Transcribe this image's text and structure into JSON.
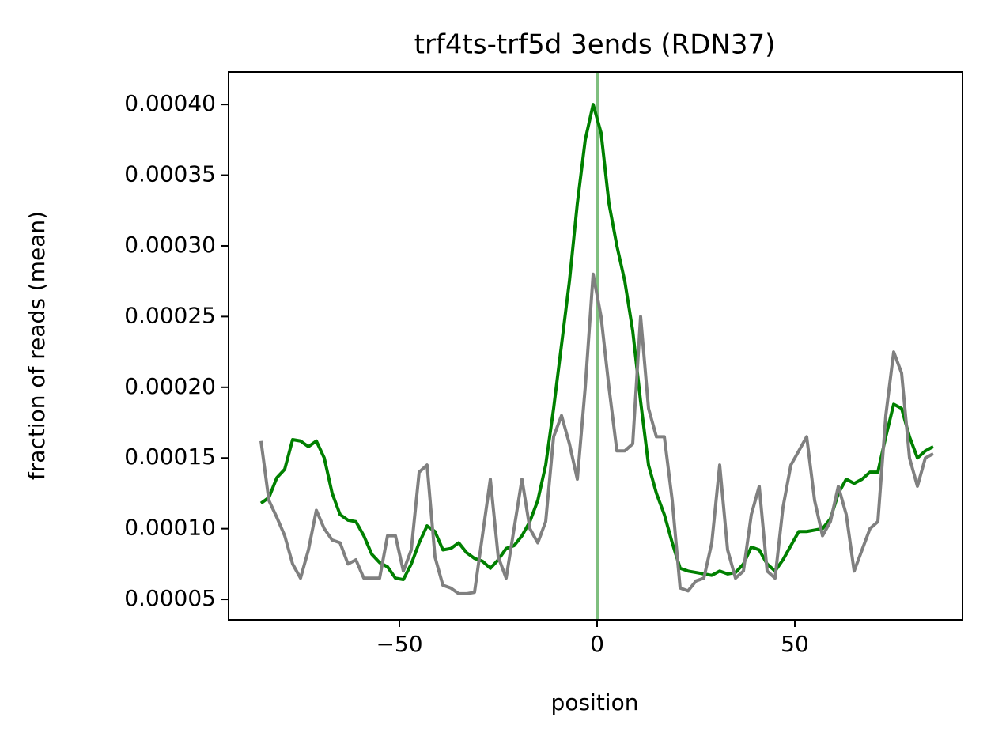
{
  "chart_data": {
    "type": "line",
    "title": "trf4ts-trf5d 3ends (RDN37)",
    "xlabel": "position",
    "ylabel": "fraction of reads (mean)",
    "x": [
      -85,
      -83,
      -81,
      -79,
      -77,
      -75,
      -73,
      -71,
      -69,
      -67,
      -65,
      -63,
      -61,
      -59,
      -57,
      -55,
      -53,
      -51,
      -49,
      -47,
      -45,
      -43,
      -41,
      -39,
      -37,
      -35,
      -33,
      -31,
      -29,
      -27,
      -25,
      -23,
      -21,
      -19,
      -17,
      -15,
      -13,
      -11,
      -9,
      -7,
      -5,
      -3,
      -1,
      1,
      3,
      5,
      7,
      9,
      11,
      13,
      15,
      17,
      19,
      21,
      23,
      25,
      27,
      29,
      31,
      33,
      35,
      37,
      39,
      41,
      43,
      45,
      47,
      49,
      51,
      53,
      55,
      57,
      59,
      61,
      63,
      65,
      67,
      69,
      71,
      73,
      75,
      77,
      79,
      81,
      83,
      85
    ],
    "series": [
      {
        "color": "#008000",
        "values": [
          0.000118,
          0.000122,
          0.000136,
          0.000142,
          0.000163,
          0.000162,
          0.000158,
          0.000162,
          0.00015,
          0.000125,
          0.00011,
          0.000106,
          0.000105,
          9.5e-05,
          8.2e-05,
          7.6e-05,
          7.3e-05,
          6.5e-05,
          6.4e-05,
          7.5e-05,
          9e-05,
          0.000102,
          9.8e-05,
          8.5e-05,
          8.6e-05,
          9e-05,
          8.3e-05,
          7.9e-05,
          7.7e-05,
          7.2e-05,
          7.8e-05,
          8.6e-05,
          8.8e-05,
          9.5e-05,
          0.000105,
          0.00012,
          0.000145,
          0.000185,
          0.00023,
          0.000275,
          0.00033,
          0.000375,
          0.0004,
          0.00038,
          0.00033,
          0.0003,
          0.000275,
          0.00024,
          0.00019,
          0.000145,
          0.000125,
          0.00011,
          9e-05,
          7.2e-05,
          7e-05,
          6.9e-05,
          6.8e-05,
          6.7e-05,
          7e-05,
          6.8e-05,
          6.9e-05,
          7.5e-05,
          8.7e-05,
          8.5e-05,
          7.5e-05,
          7e-05,
          7.8e-05,
          8.8e-05,
          9.8e-05,
          9.8e-05,
          9.9e-05,
          0.0001,
          0.000107,
          0.000125,
          0.000135,
          0.000132,
          0.000135,
          0.00014,
          0.00014,
          0.000165,
          0.000188,
          0.000185,
          0.000165,
          0.00015,
          0.000155,
          0.000158
        ]
      },
      {
        "color": "#808080",
        "values": [
          0.000162,
          0.00012,
          0.000108,
          9.5e-05,
          7.5e-05,
          6.5e-05,
          8.5e-05,
          0.000113,
          0.0001,
          9.2e-05,
          9e-05,
          7.5e-05,
          7.8e-05,
          6.5e-05,
          6.5e-05,
          6.5e-05,
          9.5e-05,
          9.5e-05,
          7e-05,
          8.5e-05,
          0.00014,
          0.000145,
          8e-05,
          6e-05,
          5.8e-05,
          5.4e-05,
          5.4e-05,
          5.5e-05,
          9.5e-05,
          0.000135,
          8e-05,
          6.5e-05,
          0.0001,
          0.000135,
          0.0001,
          9e-05,
          0.000105,
          0.000165,
          0.00018,
          0.00016,
          0.000135,
          0.0002,
          0.00028,
          0.00025,
          0.0002,
          0.000155,
          0.000155,
          0.00016,
          0.00025,
          0.000185,
          0.000165,
          0.000165,
          0.00012,
          5.8e-05,
          5.6e-05,
          6.3e-05,
          6.5e-05,
          9e-05,
          0.000145,
          8.5e-05,
          6.5e-05,
          7e-05,
          0.00011,
          0.00013,
          7e-05,
          6.5e-05,
          0.000115,
          0.000145,
          0.000155,
          0.000165,
          0.00012,
          9.5e-05,
          0.000105,
          0.00013,
          0.00011,
          7e-05,
          8.5e-05,
          0.0001,
          0.000105,
          0.00018,
          0.000225,
          0.00021,
          0.00015,
          0.00013,
          0.00015,
          0.000153
        ]
      }
    ],
    "vline": 0,
    "vline_color": "#7fbf7f",
    "xlim": [
      -93.2,
      92.4
    ],
    "xticks": [
      {
        "value": -50,
        "label": "−50"
      },
      0,
      50
    ],
    "ylim": [
      3.55e-05,
      0.000423
    ],
    "yticks": [
      {
        "value": 5e-05,
        "label": "0.00005"
      },
      {
        "value": 0.0001,
        "label": "0.00010"
      },
      {
        "value": 0.00015,
        "label": "0.00015"
      },
      {
        "value": 0.0002,
        "label": "0.00020"
      },
      {
        "value": 0.00025,
        "label": "0.00025"
      },
      {
        "value": 0.0003,
        "label": "0.00030"
      },
      {
        "value": 0.00035,
        "label": "0.00035"
      },
      {
        "value": 0.0004,
        "label": "0.00040"
      }
    ],
    "grid": false
  }
}
